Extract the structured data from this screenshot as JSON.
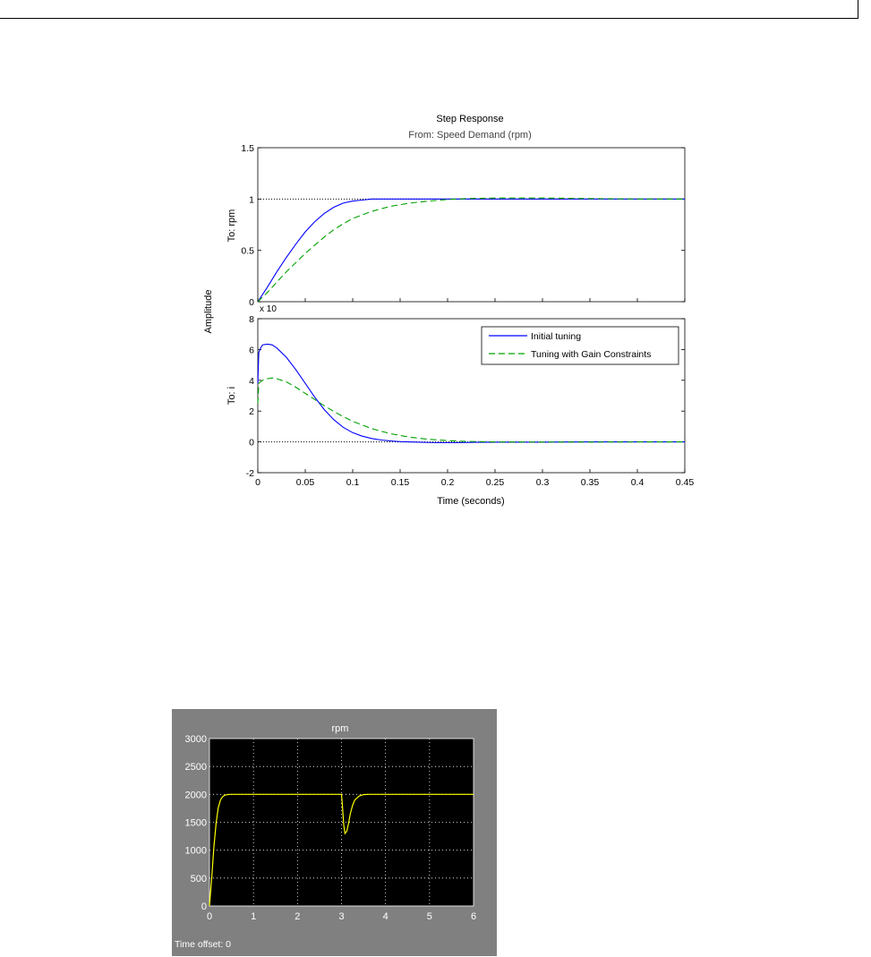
{
  "chart_data": [
    {
      "type": "line",
      "title": "Step Response",
      "subtitle": "From: Speed Demand (rpm)",
      "xlabel": "Time (seconds)",
      "ylabel": "Amplitude",
      "xlim": [
        0,
        0.45
      ],
      "x_ticks": [
        "0",
        "0.05",
        "0.1",
        "0.15",
        "0.2",
        "0.25",
        "0.3",
        "0.35",
        "0.4",
        "0.45"
      ],
      "legend": {
        "placement": "top-right of lower axes",
        "entries": [
          "Initial tuning",
          "Tuning with Gain Constraints"
        ]
      },
      "subplots": [
        {
          "ylabel": "To: rpm",
          "ylim": [
            0,
            1.5
          ],
          "y_ticks": [
            "0",
            "0.5",
            "1",
            "1.5"
          ],
          "reference_line": 1,
          "series": [
            {
              "name": "Initial tuning",
              "color": "#0000ff",
              "style": "solid",
              "x": [
                0,
                0.01,
                0.02,
                0.03,
                0.04,
                0.05,
                0.06,
                0.07,
                0.08,
                0.09,
                0.1,
                0.11,
                0.12,
                0.13,
                0.15,
                0.2,
                0.25,
                0.3,
                0.35,
                0.4,
                0.45
              ],
              "y": [
                0,
                0.14,
                0.29,
                0.43,
                0.56,
                0.68,
                0.78,
                0.86,
                0.92,
                0.96,
                0.98,
                0.99,
                1.0,
                1.0,
                1.0,
                1.0,
                1.0,
                1.0,
                1.0,
                1.0,
                1.0
              ]
            },
            {
              "name": "Tuning with Gain Constraints",
              "color": "#00a000",
              "style": "dashed",
              "x": [
                0,
                0.01,
                0.02,
                0.03,
                0.04,
                0.05,
                0.06,
                0.07,
                0.08,
                0.09,
                0.1,
                0.12,
                0.14,
                0.16,
                0.18,
                0.2,
                0.22,
                0.25,
                0.3,
                0.35,
                0.4,
                0.45
              ],
              "y": [
                0,
                0.09,
                0.19,
                0.29,
                0.38,
                0.47,
                0.55,
                0.63,
                0.7,
                0.76,
                0.81,
                0.88,
                0.93,
                0.96,
                0.98,
                0.995,
                1.005,
                1.01,
                1.01,
                1.005,
                1.0,
                1.0
              ]
            }
          ]
        },
        {
          "ylabel": "To: i",
          "ylim": [
            -2,
            8
          ],
          "y_ticks": [
            "-2",
            "0",
            "2",
            "4",
            "6",
            "8"
          ],
          "exponent_label": "x 10",
          "reference_line": 0,
          "series": [
            {
              "name": "Initial tuning",
              "color": "#0000ff",
              "style": "solid",
              "x": [
                0,
                0.001,
                0.003,
                0.005,
                0.01,
                0.015,
                0.02,
                0.03,
                0.04,
                0.05,
                0.06,
                0.07,
                0.08,
                0.09,
                0.1,
                0.11,
                0.12,
                0.13,
                0.14,
                0.15,
                0.17,
                0.19,
                0.21,
                0.23,
                0.25,
                0.3,
                0.35,
                0.4,
                0.45
              ],
              "y": [
                3.8,
                5.8,
                6.1,
                6.3,
                6.35,
                6.3,
                6.1,
                5.5,
                4.7,
                3.8,
                2.9,
                2.1,
                1.45,
                0.95,
                0.6,
                0.37,
                0.22,
                0.12,
                0.06,
                0.02,
                -0.02,
                -0.05,
                -0.05,
                -0.03,
                -0.02,
                -0.02,
                0,
                0,
                0
              ]
            },
            {
              "name": "Tuning with Gain Constraints",
              "color": "#00a000",
              "style": "dashed",
              "x": [
                0,
                0.001,
                0.003,
                0.005,
                0.01,
                0.015,
                0.02,
                0.03,
                0.04,
                0.05,
                0.06,
                0.07,
                0.08,
                0.09,
                0.1,
                0.12,
                0.14,
                0.16,
                0.18,
                0.2,
                0.22,
                0.25,
                0.3,
                0.35,
                0.4,
                0.45
              ],
              "y": [
                2.5,
                3.8,
                3.9,
                4.0,
                4.1,
                4.15,
                4.1,
                3.9,
                3.55,
                3.15,
                2.75,
                2.35,
                1.98,
                1.64,
                1.34,
                0.86,
                0.53,
                0.31,
                0.17,
                0.08,
                0.03,
                0.0,
                -0.01,
                -0.01,
                0,
                0
              ]
            }
          ]
        }
      ]
    },
    {
      "type": "line",
      "title": "rpm",
      "xlim": [
        0,
        6
      ],
      "ylim": [
        0,
        3000
      ],
      "x_ticks": [
        "0",
        "1",
        "2",
        "3",
        "4",
        "5",
        "6"
      ],
      "y_ticks": [
        "0",
        "500",
        "1000",
        "1500",
        "2000",
        "2500",
        "3000"
      ],
      "grid": true,
      "background": "#000000",
      "frame": "#808080",
      "footer": "Time offset:   0",
      "series": [
        {
          "color": "#ffff00",
          "x": [
            0,
            0.05,
            0.1,
            0.15,
            0.2,
            0.25,
            0.3,
            0.35,
            0.4,
            0.5,
            0.6,
            1,
            2,
            3,
            3.02,
            3.05,
            3.08,
            3.12,
            3.16,
            3.2,
            3.25,
            3.3,
            3.4,
            3.5,
            3.6,
            4,
            5,
            6
          ],
          "y": [
            0,
            500,
            1050,
            1480,
            1760,
            1900,
            1960,
            1985,
            1995,
            2000,
            2000,
            2000,
            2000,
            2000,
            1800,
            1450,
            1300,
            1340,
            1480,
            1650,
            1800,
            1900,
            1970,
            1995,
            2000,
            2000,
            2000,
            2000
          ]
        }
      ]
    }
  ]
}
